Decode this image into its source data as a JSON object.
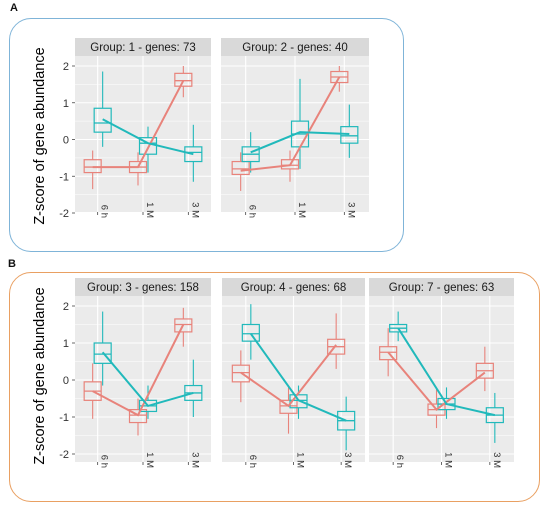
{
  "panels": [
    {
      "label": "A",
      "ylabel": "Z-score of gene abundance"
    },
    {
      "label": "B",
      "ylabel": "Z-score of gene abundance"
    }
  ],
  "chart_data": [
    {
      "type": "boxplot",
      "title": "Group:  1 - genes: 73",
      "categories": [
        "6 h",
        "1 M",
        "3 M"
      ],
      "ylim": [
        -2,
        2
      ],
      "yticks": [
        -2,
        -1,
        0,
        1,
        2
      ],
      "colors": {
        "salmon": "#e8837b",
        "teal": "#21b9bb"
      },
      "series": [
        {
          "color": "salmon",
          "trend": [
            -0.75,
            -0.75,
            1.6
          ],
          "boxes": [
            {
              "q1": -0.9,
              "median": -0.75,
              "q3": -0.55,
              "min": -1.35,
              "max": -0.3
            },
            {
              "q1": -0.9,
              "median": -0.75,
              "q3": -0.6,
              "min": -1.25,
              "max": -0.35
            },
            {
              "q1": 1.45,
              "median": 1.6,
              "q3": 1.8,
              "min": 1.15,
              "max": 2.0
            }
          ]
        },
        {
          "color": "teal",
          "trend": [
            0.55,
            -0.1,
            -0.4
          ],
          "boxes": [
            {
              "q1": 0.2,
              "median": 0.45,
              "q3": 0.85,
              "min": -0.2,
              "max": 1.85
            },
            {
              "q1": -0.4,
              "median": -0.1,
              "q3": 0.05,
              "min": -0.9,
              "max": 0.35
            },
            {
              "q1": -0.6,
              "median": -0.35,
              "q3": -0.2,
              "min": -1.15,
              "max": 0.4
            }
          ]
        }
      ]
    },
    {
      "type": "boxplot",
      "title": "Group:  2 - genes: 40",
      "categories": [
        "6 h",
        "1 M",
        "3 M"
      ],
      "ylim": [
        -2,
        2
      ],
      "yticks": [
        -2,
        -1,
        0,
        1,
        2
      ],
      "series": [
        {
          "color": "salmon",
          "trend": [
            -0.85,
            -0.7,
            1.7
          ],
          "boxes": [
            {
              "q1": -0.95,
              "median": -0.8,
              "q3": -0.6,
              "min": -1.4,
              "max": -0.35
            },
            {
              "q1": -0.8,
              "median": -0.7,
              "q3": -0.55,
              "min": -1.15,
              "max": -0.3
            },
            {
              "q1": 1.55,
              "median": 1.7,
              "q3": 1.85,
              "min": 1.3,
              "max": 2.0
            }
          ]
        },
        {
          "color": "teal",
          "trend": [
            -0.35,
            0.2,
            0.15
          ],
          "boxes": [
            {
              "q1": -0.6,
              "median": -0.4,
              "q3": -0.2,
              "min": -0.9,
              "max": 0.2
            },
            {
              "q1": -0.2,
              "median": 0.15,
              "q3": 0.5,
              "min": -0.8,
              "max": 1.65
            },
            {
              "q1": -0.1,
              "median": 0.1,
              "q3": 0.35,
              "min": -0.5,
              "max": 0.95
            }
          ]
        }
      ]
    },
    {
      "type": "boxplot",
      "title": "Group:  3 - genes: 158",
      "categories": [
        "6 h",
        "1 M",
        "3 M"
      ],
      "ylim": [
        -2,
        2
      ],
      "yticks": [
        -2,
        -1,
        0,
        1,
        2
      ],
      "series": [
        {
          "color": "salmon",
          "trend": [
            -0.3,
            -0.95,
            1.5
          ],
          "boxes": [
            {
              "q1": -0.55,
              "median": -0.3,
              "q3": -0.05,
              "min": -1.05,
              "max": 0.45
            },
            {
              "q1": -1.15,
              "median": -0.95,
              "q3": -0.8,
              "min": -1.5,
              "max": -0.5
            },
            {
              "q1": 1.3,
              "median": 1.5,
              "q3": 1.65,
              "min": 0.9,
              "max": 1.95
            }
          ]
        },
        {
          "color": "teal",
          "trend": [
            0.75,
            -0.7,
            -0.35
          ],
          "boxes": [
            {
              "q1": 0.45,
              "median": 0.7,
              "q3": 1.0,
              "min": -0.15,
              "max": 1.85
            },
            {
              "q1": -0.85,
              "median": -0.7,
              "q3": -0.55,
              "min": -1.05,
              "max": -0.15
            },
            {
              "q1": -0.55,
              "median": -0.35,
              "q3": -0.15,
              "min": -1.0,
              "max": 0.55
            }
          ]
        }
      ]
    },
    {
      "type": "boxplot",
      "title": "Group:  4 - genes: 68",
      "categories": [
        "6 h",
        "1 M",
        "3 M"
      ],
      "ylim": [
        -2,
        2
      ],
      "yticks": [
        -2,
        -1,
        0,
        1,
        2
      ],
      "series": [
        {
          "color": "salmon",
          "trend": [
            0.2,
            -0.7,
            0.95
          ],
          "boxes": [
            {
              "q1": -0.05,
              "median": 0.2,
              "q3": 0.4,
              "min": -0.6,
              "max": 0.8
            },
            {
              "q1": -0.9,
              "median": -0.7,
              "q3": -0.55,
              "min": -1.45,
              "max": -0.2
            },
            {
              "q1": 0.7,
              "median": 0.9,
              "q3": 1.1,
              "min": 0.3,
              "max": 1.8
            }
          ]
        },
        {
          "color": "teal",
          "trend": [
            1.25,
            -0.55,
            -1.1
          ],
          "boxes": [
            {
              "q1": 1.05,
              "median": 1.25,
              "q3": 1.5,
              "min": 0.55,
              "max": 2.05
            },
            {
              "q1": -0.75,
              "median": -0.55,
              "q3": -0.4,
              "min": -1.05,
              "max": -0.15
            },
            {
              "q1": -1.35,
              "median": -1.1,
              "q3": -0.85,
              "min": -1.9,
              "max": -0.45
            }
          ]
        }
      ]
    },
    {
      "type": "boxplot",
      "title": "Group:  7 - genes: 63",
      "categories": [
        "6 h",
        "1 M",
        "3 M"
      ],
      "ylim": [
        -2,
        2
      ],
      "yticks": [
        -2,
        -1,
        0,
        1,
        2
      ],
      "series": [
        {
          "color": "salmon",
          "trend": [
            0.75,
            -0.8,
            0.2
          ],
          "boxes": [
            {
              "q1": 0.55,
              "median": 0.75,
              "q3": 0.9,
              "min": 0.1,
              "max": 1.4
            },
            {
              "q1": -0.95,
              "median": -0.8,
              "q3": -0.65,
              "min": -1.3,
              "max": -0.25
            },
            {
              "q1": 0.05,
              "median": 0.25,
              "q3": 0.45,
              "min": -0.3,
              "max": 0.9
            }
          ]
        },
        {
          "color": "teal",
          "trend": [
            1.4,
            -0.65,
            -0.95
          ],
          "boxes": [
            {
              "q1": 1.3,
              "median": 1.4,
              "q3": 1.5,
              "min": 1.05,
              "max": 1.85
            },
            {
              "q1": -0.8,
              "median": -0.65,
              "q3": -0.5,
              "min": -1.05,
              "max": -0.2
            },
            {
              "q1": -1.15,
              "median": -0.95,
              "q3": -0.75,
              "min": -1.7,
              "max": -0.35
            }
          ]
        }
      ]
    }
  ]
}
